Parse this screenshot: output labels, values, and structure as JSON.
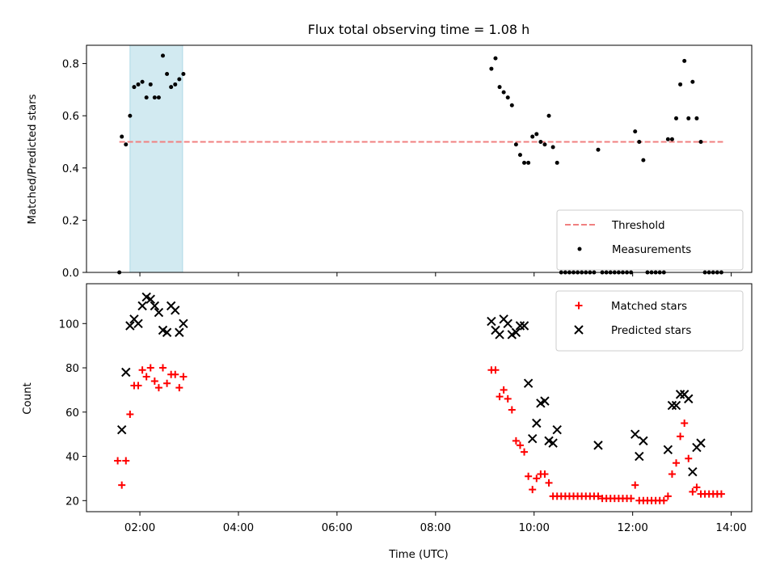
{
  "chart_data": [
    {
      "type": "scatter",
      "title": "Flux total observing time = 1.08 h",
      "xlabel": "",
      "ylabel": "Matched/Predicted stars",
      "ylim": [
        0,
        0.87
      ],
      "yticks": [
        "0.0",
        "0.2",
        "0.4",
        "0.6",
        "0.8"
      ],
      "ytick_values": [
        0,
        0.2,
        0.4,
        0.6,
        0.8
      ],
      "legend_position": "bottom-right",
      "threshold": {
        "name": "Threshold",
        "value": 0.5,
        "x_range": [
          "01:35",
          "13:50"
        ],
        "color": "#f08080"
      },
      "highlight_span": {
        "from": "01:48",
        "to": "02:52",
        "color": "#add8e6"
      },
      "series": [
        {
          "name": "Measurements",
          "color": "#000000",
          "points": [
            [
              "01:35",
              0.0
            ],
            [
              "01:38",
              0.52
            ],
            [
              "01:43",
              0.49
            ],
            [
              "01:48",
              0.6
            ],
            [
              "01:53",
              0.71
            ],
            [
              "01:58",
              0.72
            ],
            [
              "02:03",
              0.73
            ],
            [
              "02:08",
              0.67
            ],
            [
              "02:13",
              0.72
            ],
            [
              "02:18",
              0.67
            ],
            [
              "02:23",
              0.67
            ],
            [
              "02:28",
              0.83
            ],
            [
              "02:33",
              0.76
            ],
            [
              "02:38",
              0.71
            ],
            [
              "02:43",
              0.72
            ],
            [
              "02:48",
              0.74
            ],
            [
              "02:53",
              0.76
            ],
            [
              "09:08",
              0.78
            ],
            [
              "09:13",
              0.82
            ],
            [
              "09:18",
              0.71
            ],
            [
              "09:23",
              0.69
            ],
            [
              "09:28",
              0.67
            ],
            [
              "09:33",
              0.64
            ],
            [
              "09:38",
              0.49
            ],
            [
              "09:43",
              0.45
            ],
            [
              "09:48",
              0.42
            ],
            [
              "09:53",
              0.42
            ],
            [
              "09:58",
              0.52
            ],
            [
              "10:03",
              0.53
            ],
            [
              "10:08",
              0.5
            ],
            [
              "10:13",
              0.49
            ],
            [
              "10:18",
              0.6
            ],
            [
              "10:23",
              0.48
            ],
            [
              "10:28",
              0.42
            ],
            [
              "10:33",
              0.0
            ],
            [
              "10:38",
              0.0
            ],
            [
              "10:43",
              0.0
            ],
            [
              "10:48",
              0.0
            ],
            [
              "10:53",
              0.0
            ],
            [
              "10:58",
              0.0
            ],
            [
              "11:03",
              0.0
            ],
            [
              "11:08",
              0.0
            ],
            [
              "11:13",
              0.0
            ],
            [
              "11:18",
              0.47
            ],
            [
              "11:23",
              0.0
            ],
            [
              "11:28",
              0.0
            ],
            [
              "11:33",
              0.0
            ],
            [
              "11:38",
              0.0
            ],
            [
              "11:43",
              0.0
            ],
            [
              "11:48",
              0.0
            ],
            [
              "11:53",
              0.0
            ],
            [
              "11:58",
              0.0
            ],
            [
              "12:03",
              0.54
            ],
            [
              "12:08",
              0.5
            ],
            [
              "12:13",
              0.43
            ],
            [
              "12:18",
              0.0
            ],
            [
              "12:23",
              0.0
            ],
            [
              "12:28",
              0.0
            ],
            [
              "12:33",
              0.0
            ],
            [
              "12:38",
              0.0
            ],
            [
              "12:43",
              0.51
            ],
            [
              "12:48",
              0.51
            ],
            [
              "12:53",
              0.59
            ],
            [
              "12:58",
              0.72
            ],
            [
              "13:03",
              0.81
            ],
            [
              "13:08",
              0.59
            ],
            [
              "13:13",
              0.73
            ],
            [
              "13:18",
              0.59
            ],
            [
              "13:23",
              0.5
            ],
            [
              "13:28",
              0.0
            ],
            [
              "13:33",
              0.0
            ],
            [
              "13:38",
              0.0
            ],
            [
              "13:43",
              0.0
            ],
            [
              "13:48",
              0.0
            ]
          ]
        }
      ]
    },
    {
      "type": "scatter",
      "title": "",
      "xlabel": "Time (UTC)",
      "ylabel": "Count",
      "ylim": [
        15,
        118
      ],
      "yticks": [
        "20",
        "40",
        "60",
        "80",
        "100"
      ],
      "ytick_values": [
        20,
        40,
        60,
        80,
        100
      ],
      "xticks": [
        "02:00",
        "04:00",
        "06:00",
        "08:00",
        "10:00",
        "12:00",
        "14:00"
      ],
      "xlim": [
        "00:55",
        "14:25"
      ],
      "legend_position": "top-right",
      "series": [
        {
          "name": "Matched stars",
          "color": "#ff0000",
          "marker": "plus",
          "points": [
            [
              "01:33",
              38
            ],
            [
              "01:38",
              27
            ],
            [
              "01:43",
              38
            ],
            [
              "01:48",
              59
            ],
            [
              "01:53",
              72
            ],
            [
              "01:58",
              72
            ],
            [
              "02:03",
              79
            ],
            [
              "02:08",
              76
            ],
            [
              "02:13",
              80
            ],
            [
              "02:18",
              74
            ],
            [
              "02:23",
              71
            ],
            [
              "02:28",
              80
            ],
            [
              "02:33",
              73
            ],
            [
              "02:38",
              77
            ],
            [
              "02:43",
              77
            ],
            [
              "02:48",
              71
            ],
            [
              "02:53",
              76
            ],
            [
              "09:08",
              79
            ],
            [
              "09:13",
              79
            ],
            [
              "09:18",
              67
            ],
            [
              "09:23",
              70
            ],
            [
              "09:28",
              66
            ],
            [
              "09:33",
              61
            ],
            [
              "09:38",
              47
            ],
            [
              "09:43",
              45
            ],
            [
              "09:48",
              42
            ],
            [
              "09:53",
              31
            ],
            [
              "09:58",
              25
            ],
            [
              "10:03",
              30
            ],
            [
              "10:08",
              32
            ],
            [
              "10:13",
              32
            ],
            [
              "10:18",
              28
            ],
            [
              "10:23",
              22
            ],
            [
              "10:28",
              22
            ],
            [
              "10:33",
              22
            ],
            [
              "10:38",
              22
            ],
            [
              "10:43",
              22
            ],
            [
              "10:48",
              22
            ],
            [
              "10:53",
              22
            ],
            [
              "10:58",
              22
            ],
            [
              "11:03",
              22
            ],
            [
              "11:08",
              22
            ],
            [
              "11:13",
              22
            ],
            [
              "11:18",
              22
            ],
            [
              "11:23",
              21
            ],
            [
              "11:28",
              21
            ],
            [
              "11:33",
              21
            ],
            [
              "11:38",
              21
            ],
            [
              "11:43",
              21
            ],
            [
              "11:48",
              21
            ],
            [
              "11:53",
              21
            ],
            [
              "11:58",
              21
            ],
            [
              "12:03",
              27
            ],
            [
              "12:08",
              20
            ],
            [
              "12:13",
              20
            ],
            [
              "12:18",
              20
            ],
            [
              "12:23",
              20
            ],
            [
              "12:28",
              20
            ],
            [
              "12:33",
              20
            ],
            [
              "12:38",
              20
            ],
            [
              "12:43",
              22
            ],
            [
              "12:48",
              32
            ],
            [
              "12:53",
              37
            ],
            [
              "12:58",
              49
            ],
            [
              "13:03",
              55
            ],
            [
              "13:08",
              39
            ],
            [
              "13:13",
              24
            ],
            [
              "13:18",
              26
            ],
            [
              "13:23",
              23
            ],
            [
              "13:28",
              23
            ],
            [
              "13:33",
              23
            ],
            [
              "13:38",
              23
            ],
            [
              "13:43",
              23
            ],
            [
              "13:48",
              23
            ]
          ]
        },
        {
          "name": "Predicted stars",
          "color": "#000000",
          "marker": "x",
          "points": [
            [
              "01:38",
              52
            ],
            [
              "01:43",
              78
            ],
            [
              "01:48",
              99
            ],
            [
              "01:53",
              102
            ],
            [
              "01:58",
              100
            ],
            [
              "02:03",
              108
            ],
            [
              "02:08",
              112
            ],
            [
              "02:13",
              111
            ],
            [
              "02:18",
              108
            ],
            [
              "02:23",
              105
            ],
            [
              "02:28",
              97
            ],
            [
              "02:33",
              96
            ],
            [
              "02:38",
              108
            ],
            [
              "02:43",
              106
            ],
            [
              "02:48",
              96
            ],
            [
              "02:53",
              100
            ],
            [
              "09:08",
              101
            ],
            [
              "09:13",
              97
            ],
            [
              "09:18",
              95
            ],
            [
              "09:23",
              102
            ],
            [
              "09:28",
              100
            ],
            [
              "09:33",
              95
            ],
            [
              "09:38",
              96
            ],
            [
              "09:43",
              99
            ],
            [
              "09:48",
              99
            ],
            [
              "09:53",
              73
            ],
            [
              "09:58",
              48
            ],
            [
              "10:03",
              55
            ],
            [
              "10:08",
              64
            ],
            [
              "10:13",
              65
            ],
            [
              "10:18",
              47
            ],
            [
              "10:23",
              46
            ],
            [
              "10:28",
              52
            ],
            [
              "11:18",
              45
            ],
            [
              "12:03",
              50
            ],
            [
              "12:08",
              40
            ],
            [
              "12:13",
              47
            ],
            [
              "12:43",
              43
            ],
            [
              "12:48",
              63
            ],
            [
              "12:53",
              63
            ],
            [
              "12:58",
              68
            ],
            [
              "13:03",
              68
            ],
            [
              "13:08",
              66
            ],
            [
              "13:13",
              33
            ],
            [
              "13:18",
              44
            ],
            [
              "13:23",
              46
            ]
          ]
        }
      ]
    }
  ]
}
